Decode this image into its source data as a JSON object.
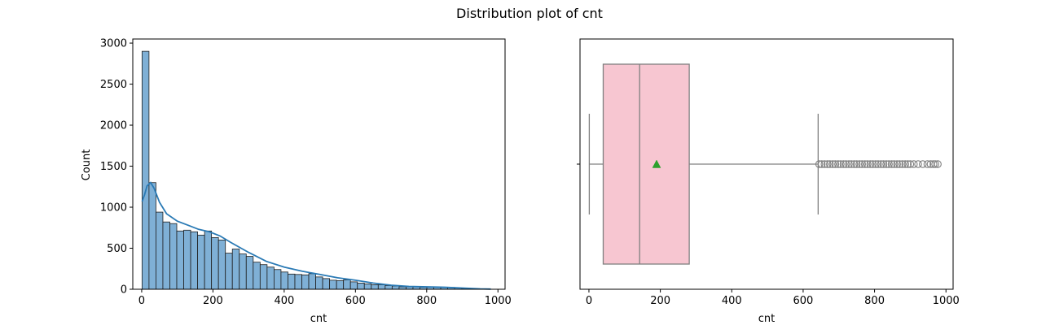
{
  "figure": {
    "suptitle": "Distribution plot of cnt"
  },
  "colors": {
    "hist_fill": "#7fb0d6",
    "hist_edge": "#1f1f1f",
    "kde_line": "#2a7ab5",
    "box_fill": "#f7c6d1",
    "box_line": "#808080",
    "mean_marker": "#2ca02c",
    "flier_edge": "#808080"
  },
  "chart_data": [
    {
      "type": "histogram",
      "xlabel": "cnt",
      "ylabel": "Count",
      "xlim": [
        -25,
        1020
      ],
      "ylim": [
        0,
        3050
      ],
      "xticks": [
        "0",
        "200",
        "400",
        "600",
        "800",
        "1000"
      ],
      "xtick_values": [
        0,
        200,
        400,
        600,
        800,
        1000
      ],
      "yticks": [
        "0",
        "500",
        "1000",
        "1500",
        "2000",
        "2500",
        "3000"
      ],
      "ytick_values": [
        0,
        500,
        1000,
        1500,
        2000,
        2500,
        3000
      ],
      "bin_width": 19.5,
      "bin_start": 1,
      "counts": [
        2900,
        1300,
        940,
        820,
        800,
        710,
        720,
        700,
        660,
        710,
        630,
        600,
        440,
        490,
        430,
        400,
        330,
        300,
        270,
        240,
        210,
        185,
        180,
        175,
        190,
        150,
        130,
        110,
        105,
        115,
        90,
        75,
        65,
        55,
        55,
        45,
        40,
        30,
        30,
        28,
        25,
        25,
        30,
        25,
        22,
        15,
        8,
        6,
        5,
        3
      ],
      "kde_x": [
        1,
        8,
        15,
        25,
        35,
        50,
        70,
        100,
        130,
        160,
        190,
        220,
        250,
        300,
        350,
        400,
        450,
        500,
        550,
        600,
        650,
        700,
        750,
        800,
        850,
        900,
        950,
        980
      ],
      "kde_y": [
        1070,
        1150,
        1260,
        1300,
        1230,
        1060,
        920,
        830,
        780,
        730,
        700,
        650,
        570,
        450,
        340,
        270,
        220,
        180,
        140,
        110,
        75,
        50,
        35,
        30,
        25,
        15,
        5,
        2
      ]
    },
    {
      "type": "box",
      "xlabel": "cnt",
      "xlim": [
        -25,
        1020
      ],
      "xticks": [
        "0",
        "200",
        "400",
        "600",
        "800",
        "1000"
      ],
      "xtick_values": [
        0,
        200,
        400,
        600,
        800,
        1000
      ],
      "whisker_low": 1,
      "q1": 40,
      "median": 142,
      "q3": 281,
      "whisker_high": 642,
      "mean": 189.5,
      "outliers": [
        645,
        652,
        660,
        668,
        675,
        683,
        690,
        698,
        705,
        713,
        720,
        728,
        735,
        743,
        750,
        758,
        765,
        773,
        780,
        788,
        795,
        803,
        810,
        818,
        825,
        833,
        840,
        848,
        855,
        863,
        870,
        878,
        886,
        893,
        900,
        910,
        922,
        935,
        948,
        957,
        965,
        970,
        977
      ]
    }
  ]
}
